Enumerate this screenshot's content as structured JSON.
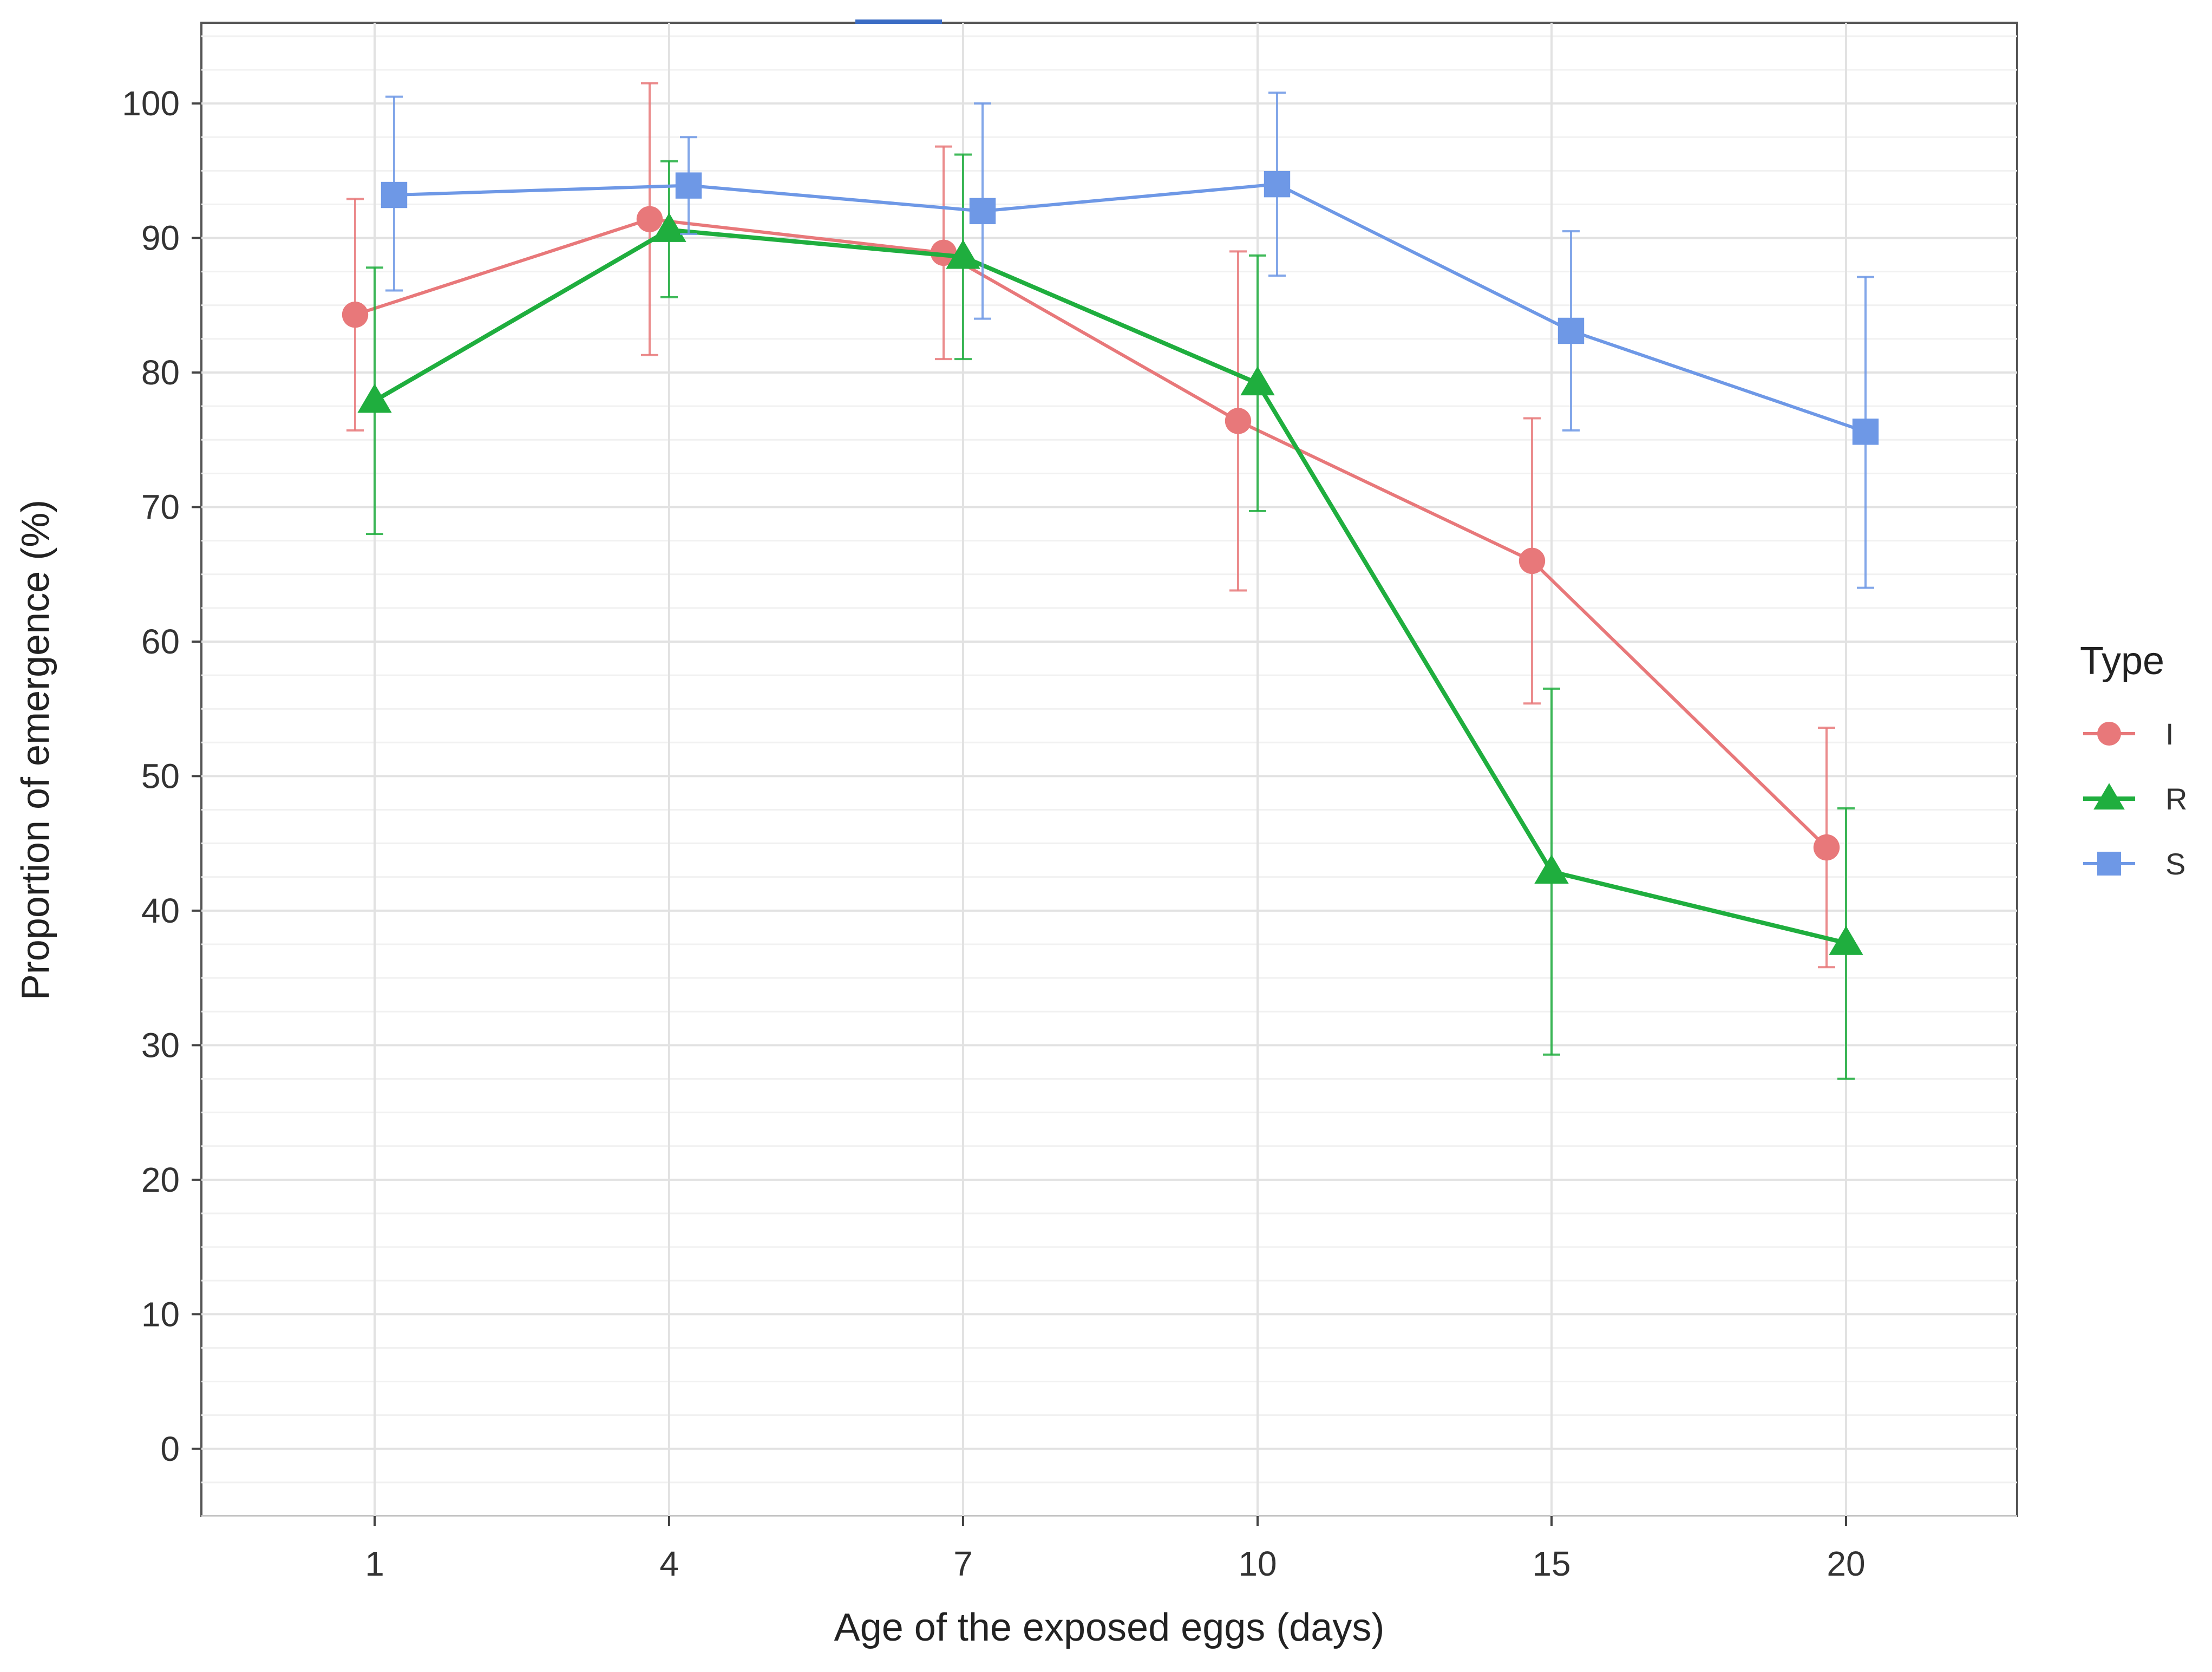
{
  "chart_data": {
    "type": "line",
    "title": "",
    "xlabel": "Age of the exposed eggs (days)",
    "ylabel": "Proportion of emergence (%)",
    "x_categories": [
      "1",
      "4",
      "7",
      "10",
      "15",
      "20"
    ],
    "ylim": [
      -5,
      106
    ],
    "y_ticks": [
      0,
      10,
      20,
      30,
      40,
      50,
      60,
      70,
      80,
      90,
      100
    ],
    "grid": true,
    "legend": {
      "title": "Type",
      "position": "right"
    },
    "series": [
      {
        "name": "I",
        "color": "#e8787a",
        "marker": "circle",
        "values": [
          84.3,
          91.4,
          88.9,
          76.4,
          66.0,
          44.7
        ],
        "error_low": [
          75.7,
          81.3,
          81.0,
          63.8,
          55.4,
          35.8
        ],
        "error_high": [
          92.9,
          101.5,
          96.8,
          89.0,
          76.6,
          53.6
        ]
      },
      {
        "name": "R",
        "color": "#1fae3e",
        "marker": "triangle",
        "values": [
          77.9,
          90.6,
          88.6,
          79.2,
          42.9,
          37.6
        ],
        "error_low": [
          68.0,
          85.6,
          81.0,
          69.7,
          29.3,
          27.5
        ],
        "error_high": [
          87.8,
          95.7,
          96.2,
          88.7,
          56.5,
          47.6
        ]
      },
      {
        "name": "S",
        "color": "#6e98e6",
        "marker": "square",
        "values": [
          93.2,
          93.9,
          92.0,
          94.0,
          83.1,
          75.6
        ],
        "error_low": [
          86.1,
          90.3,
          84.0,
          87.2,
          75.7,
          64.0
        ],
        "error_high": [
          100.5,
          97.5,
          100.0,
          100.8,
          90.5,
          87.1
        ]
      }
    ]
  }
}
